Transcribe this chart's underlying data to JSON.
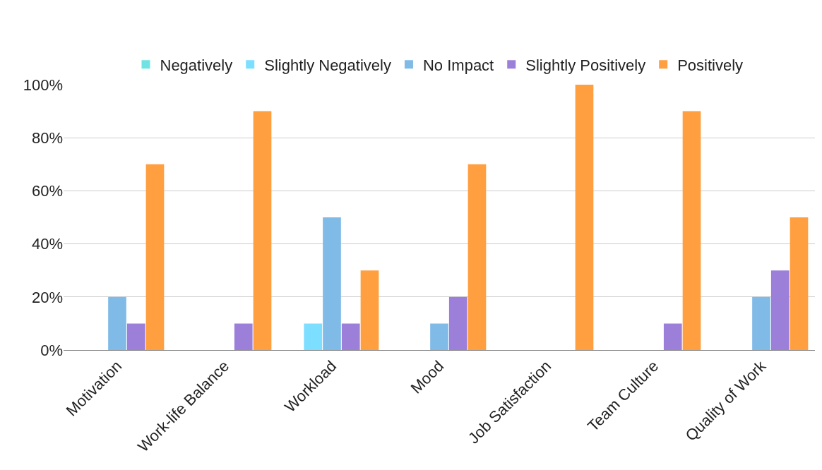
{
  "chart_data": {
    "type": "bar",
    "categories": [
      "Motivation",
      "Work-life Balance",
      "Workload",
      "Mood",
      "Job Satisfaction",
      "Team Culture",
      "Quality of Work"
    ],
    "series": [
      {
        "name": "Negatively",
        "color": "#6fe3e3",
        "values": [
          0,
          0,
          0,
          0,
          0,
          0,
          0
        ]
      },
      {
        "name": "Slightly Negatively",
        "color": "#7ddfff",
        "values": [
          0,
          0,
          10,
          0,
          0,
          0,
          0
        ]
      },
      {
        "name": "No Impact",
        "color": "#80bbe8",
        "values": [
          20,
          0,
          50,
          10,
          0,
          0,
          20
        ]
      },
      {
        "name": "Slightly Positively",
        "color": "#9b7fd8",
        "values": [
          10,
          10,
          10,
          20,
          0,
          10,
          30
        ]
      },
      {
        "name": "Positively",
        "color": "#ff9f40",
        "values": [
          70,
          90,
          30,
          70,
          100,
          90,
          50
        ]
      }
    ],
    "ylim": [
      0,
      100
    ],
    "yticks": [
      {
        "value": 0,
        "label": "0%"
      },
      {
        "value": 20,
        "label": "20%"
      },
      {
        "value": 40,
        "label": "40%"
      },
      {
        "value": 60,
        "label": "60%"
      },
      {
        "value": 80,
        "label": "80%"
      },
      {
        "value": 100,
        "label": "100%"
      }
    ],
    "grid": "y",
    "legend": "top"
  }
}
